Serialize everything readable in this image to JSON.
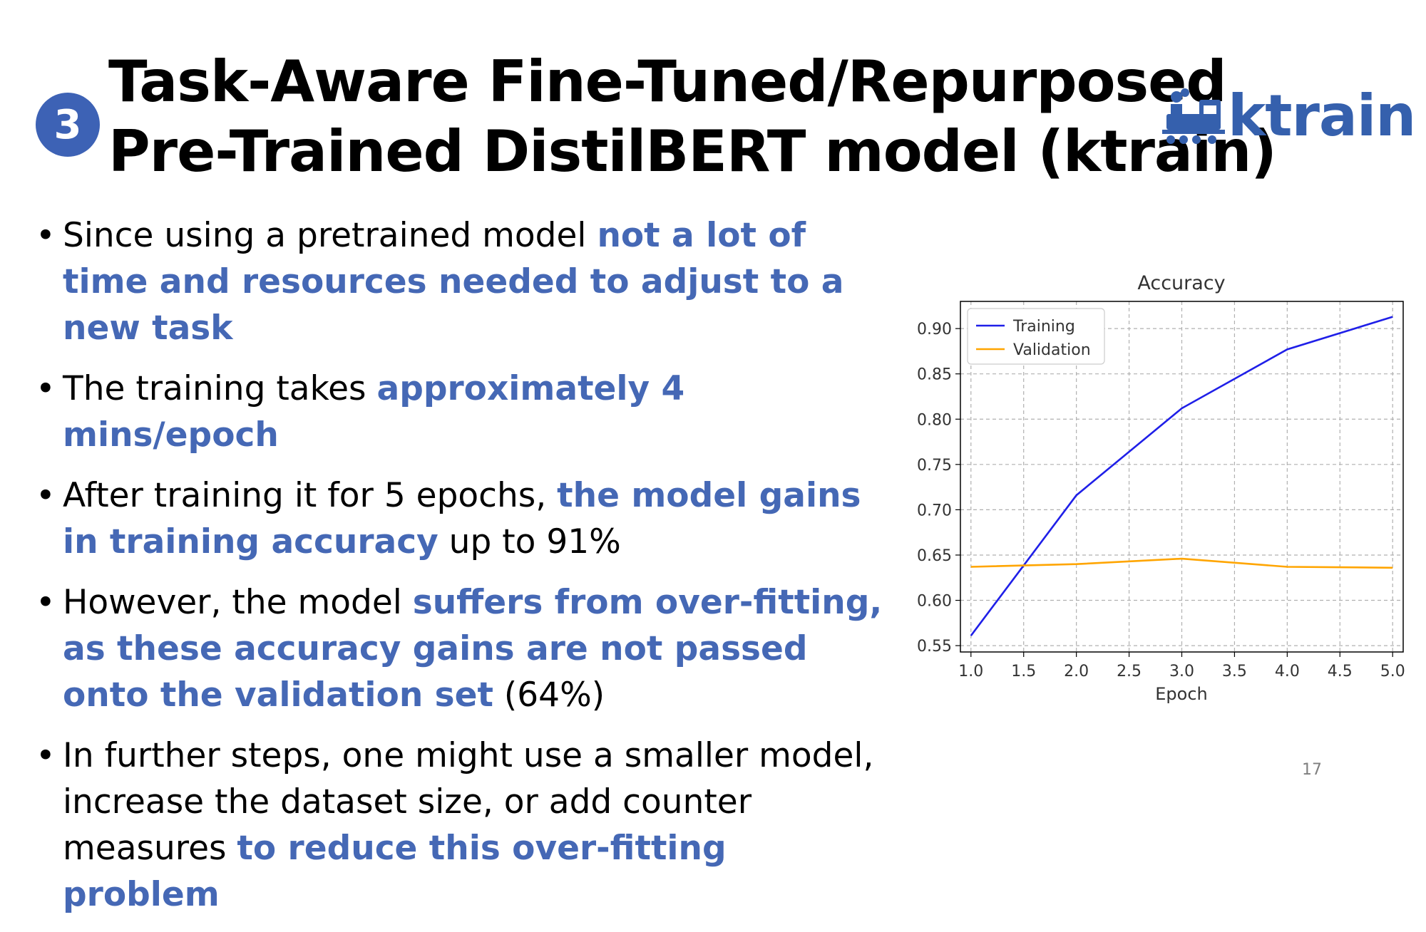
{
  "slide": {
    "step_badge": "3",
    "title_line1": "Task-Aware Fine-Tuned/Repurposed",
    "title_line2": "Pre-Trained DistilBERT model (ktrain)",
    "logo_text": "ktrain",
    "page_number": "17",
    "accent_color": "#4568b5"
  },
  "bullets": [
    {
      "plain1": "Since using a pretrained model ",
      "highlight1": "not a lot of time and resources needed to adjust to a new task"
    },
    {
      "plain1": "The training takes ",
      "highlight1": "approximately 4 mins/epoch"
    },
    {
      "plain1": "After training it for 5 epochs, ",
      "highlight1": "the model gains in training accuracy",
      "plain2": " up to 91%"
    },
    {
      "plain1": "However, the model ",
      "highlight1": "suffers from over-fitting, as these accuracy gains are not passed onto the validation set",
      "plain2": " (64%)"
    },
    {
      "plain1": "In further steps, one might use a smaller model, increase the dataset size, or add counter measures ",
      "highlight1": "to reduce this over-fitting problem"
    }
  ],
  "chart_data": {
    "type": "line",
    "title": "Accuracy",
    "xlabel": "Epoch",
    "ylabel": "",
    "x": [
      1,
      2,
      3,
      4,
      5
    ],
    "xlim": [
      0.9,
      5.1
    ],
    "ylim": [
      0.543,
      0.93
    ],
    "xticks": [
      "1.0",
      "1.5",
      "2.0",
      "2.5",
      "3.0",
      "3.5",
      "4.0",
      "4.5",
      "5.0"
    ],
    "yticks": [
      "0.55",
      "0.60",
      "0.65",
      "0.70",
      "0.75",
      "0.80",
      "0.85",
      "0.90"
    ],
    "grid": true,
    "legend_position": "top-left",
    "series": [
      {
        "name": "Training",
        "color": "#1f1fe8",
        "values": [
          0.561,
          0.716,
          0.812,
          0.877,
          0.913
        ]
      },
      {
        "name": "Validation",
        "color": "#ffa500",
        "values": [
          0.637,
          0.64,
          0.646,
          0.637,
          0.636
        ]
      }
    ]
  }
}
